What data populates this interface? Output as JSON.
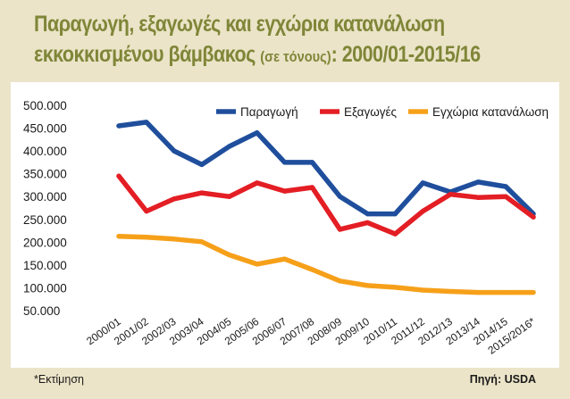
{
  "title": {
    "line1": "Παραγωγή, εξαγωγές και εγχώρια κατανάλωση",
    "line2_main": "εκκοκκισμένου βάμβακος",
    "line2_small": "(σε τόνους)",
    "line2_tail": ": 2000/01-2015/16"
  },
  "footer": {
    "note": "*Εκτίμηση",
    "source": "Πηγή: USDA"
  },
  "chart_data": {
    "type": "line",
    "title": "Παραγωγή, εξαγωγές και εγχώρια κατανάλωση εκκοκκισμένου βάμβακος (σε τόνους): 2000/01-2015/16",
    "xlabel": "",
    "ylabel": "",
    "ylim": [
      50000,
      500000
    ],
    "yticks": [
      50000,
      100000,
      150000,
      200000,
      250000,
      300000,
      350000,
      400000,
      450000,
      500000
    ],
    "ytick_labels": [
      "50.000",
      "100.000",
      "150.000",
      "200.000",
      "250.000",
      "300.000",
      "350.000",
      "400.000",
      "450.000",
      "500.000"
    ],
    "grid": false,
    "legend_position": "top",
    "categories": [
      "2000/01",
      "2001/02",
      "2002/03",
      "2003/04",
      "2004/05",
      "2005/06",
      "2006/07",
      "2007/08",
      "2008/09",
      "2009/10",
      "2010/11",
      "2011/12",
      "2012/13",
      "2013/14",
      "2014/15",
      "2015/2016*"
    ],
    "series": [
      {
        "name": "Παραγωγή",
        "color": "#1f4e9c",
        "values": [
          455000,
          463000,
          400000,
          370000,
          410000,
          440000,
          375000,
          375000,
          300000,
          262000,
          262000,
          330000,
          310000,
          332000,
          322000,
          262000
        ]
      },
      {
        "name": "Εξαγωγές",
        "color": "#e31e24",
        "values": [
          345000,
          268000,
          295000,
          308000,
          300000,
          330000,
          312000,
          320000,
          228000,
          243000,
          218000,
          268000,
          305000,
          298000,
          300000,
          255000
        ]
      },
      {
        "name": "Εγχώρια κατανάλωση",
        "color": "#f6a01a",
        "values": [
          213000,
          211000,
          207000,
          201000,
          172000,
          152000,
          163000,
          140000,
          115000,
          105000,
          101000,
          95000,
          92000,
          90000,
          90000,
          90000
        ]
      }
    ]
  }
}
